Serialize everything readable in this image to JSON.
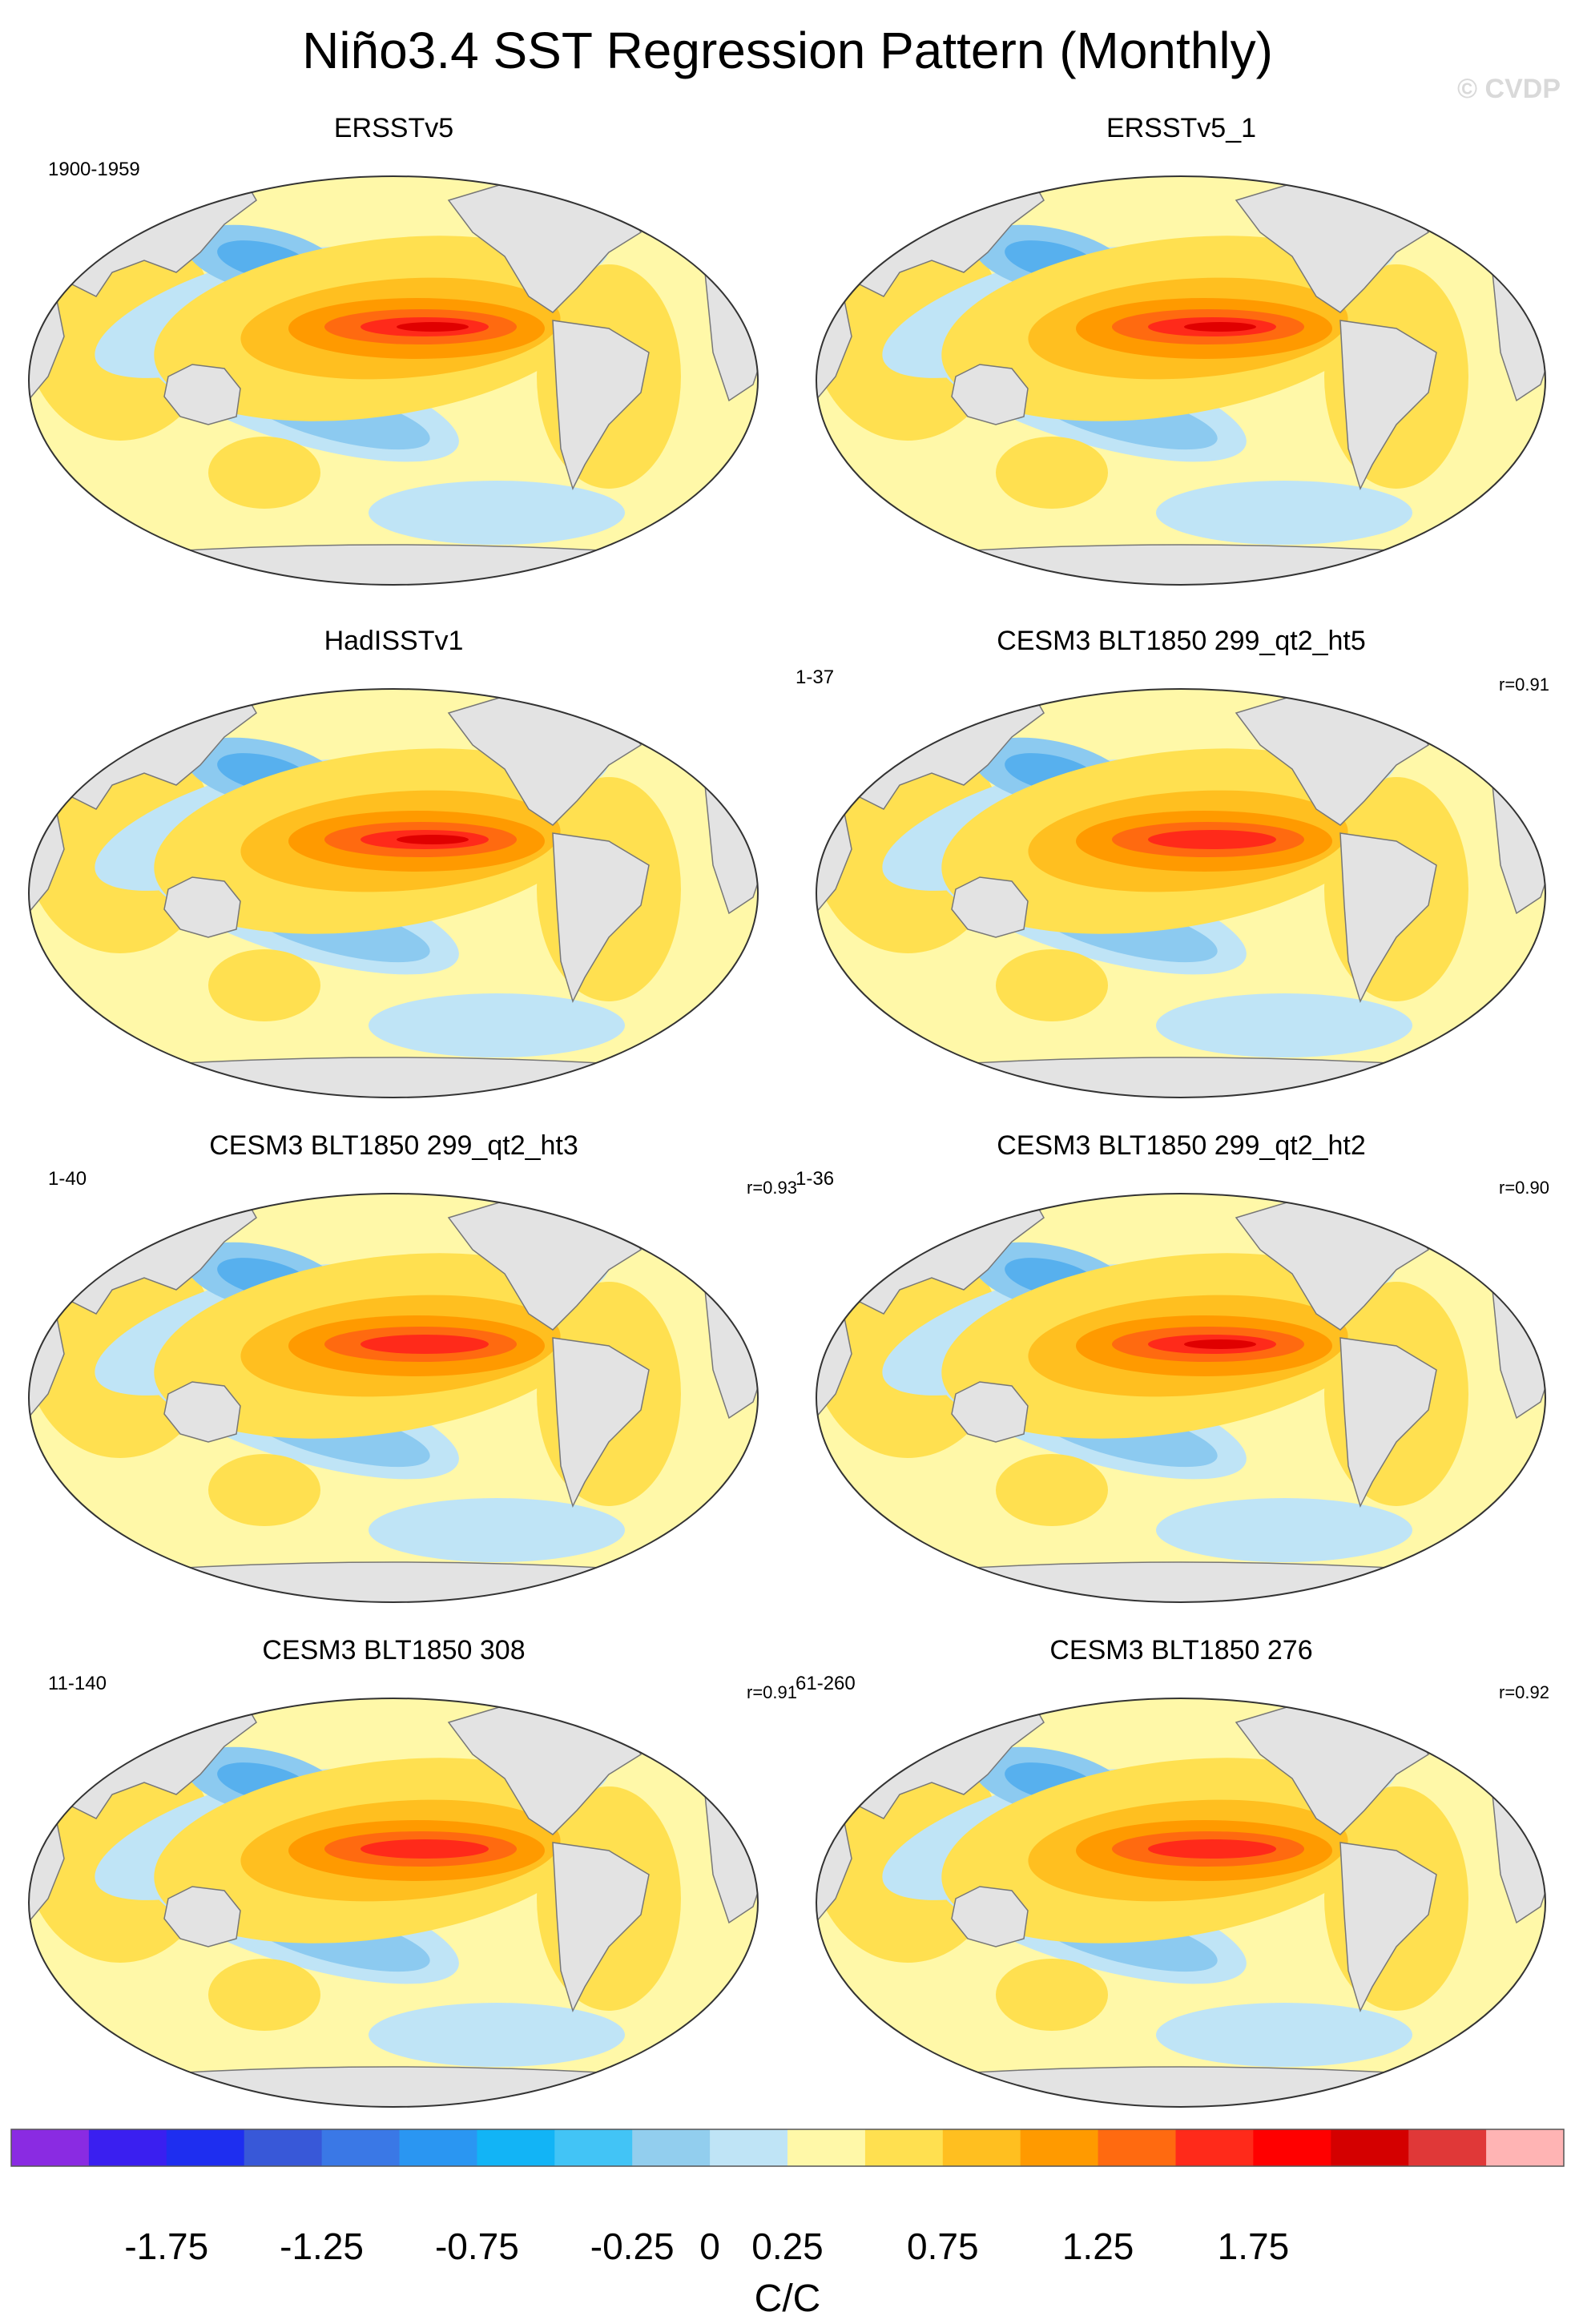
{
  "title": "Niño3.4 SST Regression Pattern (Monthly)",
  "copyright": "© CVDP",
  "colors": {
    "land": "#e3e3e3",
    "ocean_neutral": "#fff8a8",
    "coast": "#777777",
    "warm1": "#ffe050",
    "warm2": "#ffbf20",
    "warm3": "#ff9a00",
    "warm4": "#ff6a10",
    "warm5": "#ff2a1a",
    "cool1": "#bfe4f6",
    "cool2": "#8ccaf0",
    "cool3": "#57b0ee"
  },
  "panels": [
    {
      "title": "ERSSTv5",
      "years": "1900-1959",
      "r": ""
    },
    {
      "title": "ERSSTv5_1",
      "years": "",
      "r": ""
    },
    {
      "title": "HadISSTv1",
      "years": "",
      "r": ""
    },
    {
      "title": "CESM3 BLT1850 299_qt2_ht5",
      "years": "1-37",
      "r": "r=0.91"
    },
    {
      "title": "CESM3 BLT1850 299_qt2_ht3",
      "years": "1-40",
      "r": "r=0.93"
    },
    {
      "title": "CESM3 BLT1850 299_qt2_ht2",
      "years": "1-36",
      "r": "r=0.90"
    },
    {
      "title": "CESM3 BLT1850 308",
      "years": "11-140",
      "r": "r=0.91"
    },
    {
      "title": "CESM3 BLT1850 276",
      "years": "61-260",
      "r": "r=0.92"
    }
  ],
  "chart_data": {
    "type": "heatmap",
    "title": "Niño3.4 SST Regression Pattern (Monthly)",
    "colorbar": {
      "units": "C/C",
      "levels": [
        -2.0,
        -1.75,
        -1.5,
        -1.25,
        -1.0,
        -0.75,
        -0.5,
        -0.25,
        0,
        0.25,
        0.5,
        0.75,
        1.0,
        1.25,
        1.5,
        1.75,
        2.0
      ],
      "tick_labels": [
        "-1.75",
        "-1.25",
        "-0.75",
        "-0.25",
        "0",
        "0.25",
        "0.75",
        "1.25",
        "1.75"
      ],
      "colors": [
        "#8a2be2",
        "#3a1ff0",
        "#1e2ef0",
        "#3858d8",
        "#3a78e6",
        "#2a96f2",
        "#12b4f6",
        "#42c4f6",
        "#92ceee",
        "#bfe4f6",
        "#fff8a8",
        "#ffe050",
        "#ffbf20",
        "#ff9a00",
        "#ff6a10",
        "#ff2a1a",
        "#ff0000",
        "#d40000",
        "#e03838",
        "#ffb4b4"
      ]
    },
    "panel_values": [
      {
        "name": "ERSSTv5",
        "nino34_peak": 1.5,
        "pattern_correlation": null
      },
      {
        "name": "ERSSTv5_1",
        "nino34_peak": 1.5,
        "pattern_correlation": null
      },
      {
        "name": "HadISSTv1",
        "nino34_peak": 1.75,
        "pattern_correlation": null
      },
      {
        "name": "CESM3 BLT1850 299_qt2_ht5",
        "nino34_peak": 1.25,
        "pattern_correlation": 0.91
      },
      {
        "name": "CESM3 BLT1850 299_qt2_ht3",
        "nino34_peak": 1.25,
        "pattern_correlation": 0.93
      },
      {
        "name": "CESM3 BLT1850 299_qt2_ht2",
        "nino34_peak": 1.5,
        "pattern_correlation": 0.9
      },
      {
        "name": "CESM3 BLT1850 308",
        "nino34_peak": 1.25,
        "pattern_correlation": 0.91
      },
      {
        "name": "CESM3 BLT1850 276",
        "nino34_peak": 1.25,
        "pattern_correlation": 0.92
      }
    ]
  }
}
